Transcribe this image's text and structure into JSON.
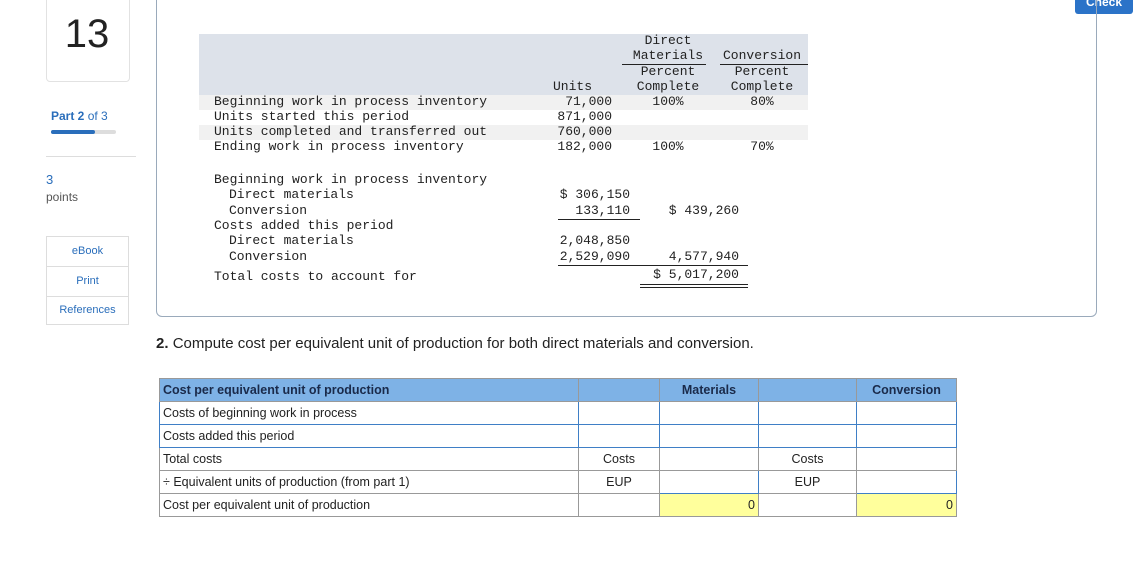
{
  "header": {
    "check_button": "Check"
  },
  "sidebar": {
    "question_number": "13",
    "part_label": "Part 2",
    "part_of": "of 3",
    "points_value": "3",
    "points_label": "points",
    "buttons": [
      "eBook",
      "Print",
      "References"
    ]
  },
  "units_table": {
    "headers": {
      "units": "Units",
      "direct_materials": [
        "Direct",
        "Materials",
        "Percent",
        "Complete"
      ],
      "conversion": [
        "Conversion",
        "Percent",
        "Complete"
      ]
    },
    "rows": [
      {
        "label": "Beginning work in process inventory",
        "units": "71,000",
        "direct_materials": "100%",
        "conversion": "80%"
      },
      {
        "label": "Units started this period",
        "units": "871,000"
      },
      {
        "label": "Units completed and transferred out",
        "units": "760,000"
      },
      {
        "label": "Ending work in process inventory",
        "units": "182,000",
        "direct_materials": "100%",
        "conversion": "70%"
      }
    ]
  },
  "cost_table": {
    "rows": [
      {
        "label": "Beginning work in process inventory"
      },
      {
        "label": "Direct materials",
        "amount": "$ 306,150"
      },
      {
        "label": "Conversion",
        "amount": "133,110",
        "total": "$ 439,260"
      },
      {
        "label": "Costs added this period"
      },
      {
        "label": "Direct materials",
        "amount": "2,048,850"
      },
      {
        "label": "Conversion",
        "amount": "2,529,090",
        "total": "4,577,940"
      },
      {
        "label": "Total costs to account for",
        "total": "$ 5,017,200"
      }
    ]
  },
  "question": {
    "number": "2.",
    "text": "Compute cost per equivalent unit of production for both direct materials and conversion."
  },
  "answer_table": {
    "headers": {
      "label": "Cost per equivalent unit of production",
      "materials": "Materials",
      "conversion": "Conversion"
    },
    "rows": [
      {
        "label": "Costs of beginning work in process"
      },
      {
        "label": "Costs added this period"
      },
      {
        "label": "Total costs",
        "materials_unit": "Costs",
        "conversion_unit": "Costs"
      },
      {
        "label": "÷ Equivalent units of production (from part 1)",
        "materials_unit": "EUP",
        "conversion_unit": "EUP"
      },
      {
        "label": "Cost per equivalent unit of production",
        "materials_result": "0",
        "conversion_result": "0"
      }
    ]
  }
}
